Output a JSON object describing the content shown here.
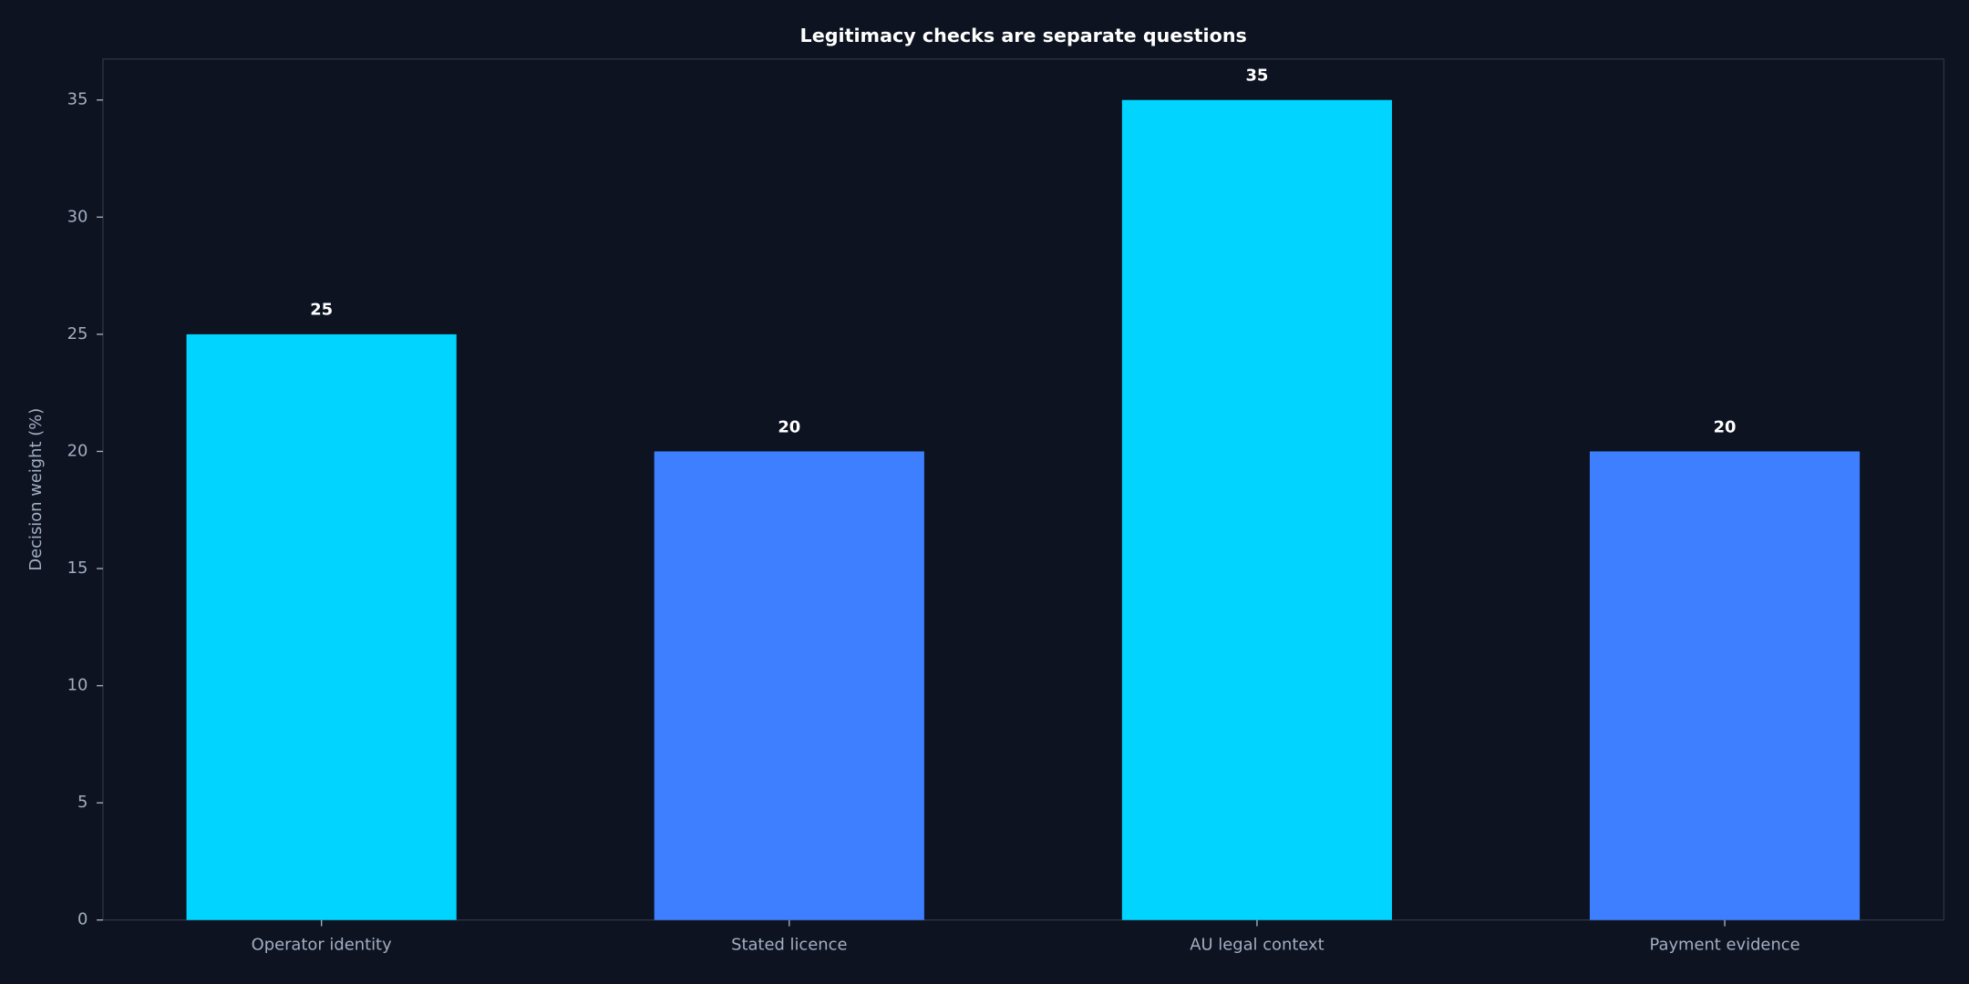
{
  "chart_data": {
    "type": "bar",
    "title": "Legitimacy checks are separate questions",
    "ylabel": "Decision weight (%)",
    "categories": [
      "Operator identity",
      "Stated licence",
      "AU legal context",
      "Payment evidence"
    ],
    "values": [
      25,
      20,
      35,
      20
    ],
    "colors": [
      "#00d4ff",
      "#3d7fff",
      "#00d4ff",
      "#3d7fff"
    ],
    "ylim": [
      0,
      36.75
    ],
    "yticks": [
      0,
      5,
      10,
      15,
      20,
      25,
      30,
      35
    ],
    "grid": false
  }
}
